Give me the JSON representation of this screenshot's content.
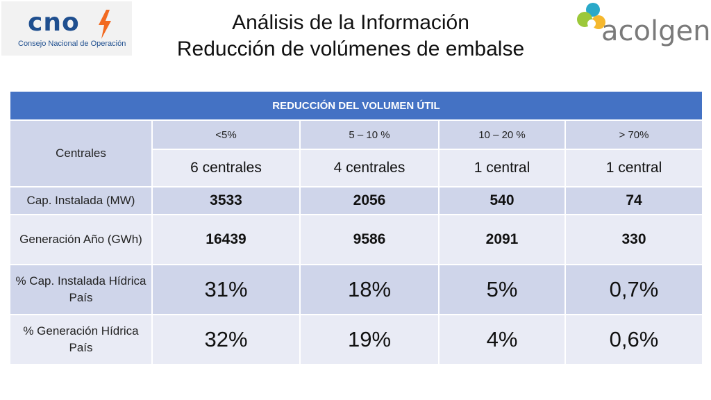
{
  "logos": {
    "left": {
      "word": "cno",
      "subtitle": "Consejo Nacional de Operación",
      "icon": "lightning-bolt-icon",
      "color": "#1f4f8f",
      "accent": "#f26a21"
    },
    "right": {
      "word": "acolgen",
      "icon": "acolgen-swirl-icon"
    }
  },
  "title": {
    "line1": "Análisis de la Información",
    "line2": "Reducción de volúmenes de embalse"
  },
  "table": {
    "header": "REDUCCIÓN DEL VOLUMEN ÚTIL",
    "group_label": "Centrales",
    "ranges": [
      "<5%",
      "5 – 10 %",
      "10 – 20 %",
      "> 70%"
    ],
    "plant_counts": [
      "6 centrales",
      "4 centrales",
      "1 central",
      "1 central"
    ],
    "rows": [
      {
        "label": "Cap. Instalada (MW)",
        "values": [
          "3533",
          "2056",
          "540",
          "74"
        ]
      },
      {
        "label": "Generación Año (GWh)",
        "values": [
          "16439",
          "9586",
          "2091",
          "330"
        ]
      },
      {
        "label": "% Cap. Instalada Hídrica País",
        "values": [
          "31%",
          "18%",
          "5%",
          "0,7%"
        ]
      },
      {
        "label": "% Generación Hídrica País",
        "values": [
          "32%",
          "19%",
          "4%",
          "0,6%"
        ]
      }
    ]
  },
  "colors": {
    "header": "#4472c4",
    "band_dark": "#cfd5ea",
    "band_light": "#e9ebf5"
  }
}
